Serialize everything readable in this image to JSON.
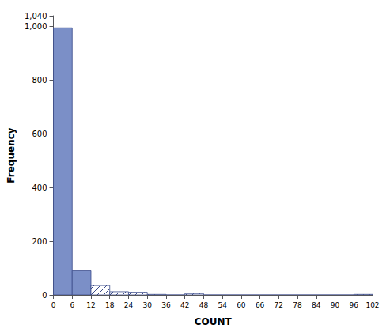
{
  "chart_data": {
    "type": "histogram",
    "bins": [
      0,
      6,
      12,
      18,
      24,
      30,
      36,
      42,
      48,
      54,
      60,
      66,
      72,
      78,
      84,
      90,
      96,
      102
    ],
    "values": [
      995,
      90,
      35,
      12,
      10,
      2,
      0,
      5,
      0,
      0,
      0,
      0,
      0,
      0,
      0,
      0,
      2
    ],
    "colors": [
      "#7b8fc7",
      "#7b8fc7",
      "#ffffff",
      "#ffffff",
      "#ffffff",
      "#ffffff",
      "#ffffff",
      "#ffffff",
      "#ffffff",
      "#ffffff",
      "#ffffff",
      "#ffffff",
      "#ffffff",
      "#ffffff",
      "#ffffff",
      "#ffffff",
      "#ffffff"
    ],
    "xlabel": "COUNT",
    "ylabel": "Frequency",
    "xlim": [
      0,
      102
    ],
    "xticks": [
      0,
      6,
      12,
      18,
      24,
      30,
      36,
      42,
      48,
      54,
      60,
      66,
      72,
      78,
      84,
      90,
      96,
      102
    ],
    "ylim": [
      0,
      1040
    ],
    "yticks": [
      0,
      200,
      400,
      600,
      800,
      1000
    ],
    "grid": false
  }
}
